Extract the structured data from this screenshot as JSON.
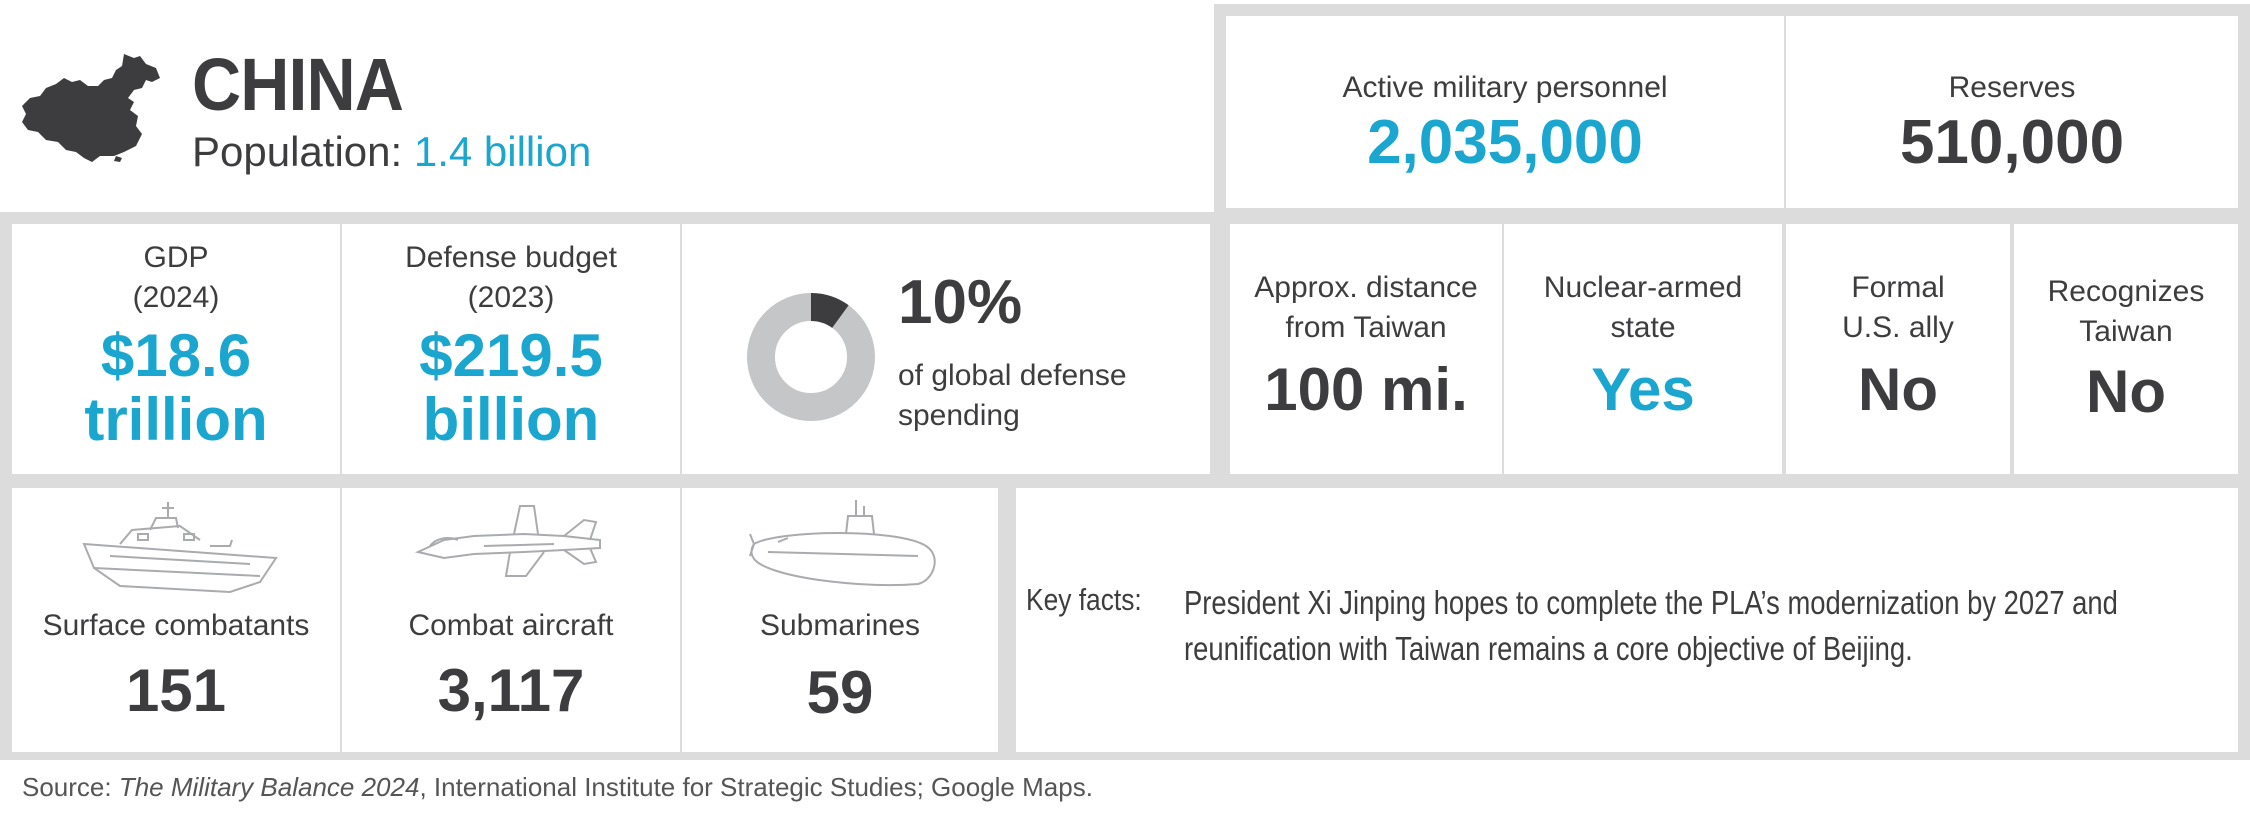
{
  "header": {
    "country": "CHINA",
    "population_label": "Population:",
    "population_value": "1.4 billion",
    "map_icon": "china-map-icon"
  },
  "personnel": {
    "active_label": "Active military personnel",
    "active_value": "2,035,000",
    "reserves_label": "Reserves",
    "reserves_value": "510,000"
  },
  "economy": {
    "gdp_label_1": "GDP",
    "gdp_label_2": "(2024)",
    "gdp_value_1": "$18.6",
    "gdp_value_2": "trillion",
    "defense_label_1": "Defense budget",
    "defense_label_2": "(2023)",
    "defense_value_1": "$219.5",
    "defense_value_2": "billion",
    "global_share_value": "10%",
    "global_share_fraction": 0.1,
    "global_share_text_1": "of global defense",
    "global_share_text_2": "spending"
  },
  "status": {
    "distance_label_1": "Approx. distance",
    "distance_label_2": "from Taiwan",
    "distance_value": "100 mi.",
    "nuclear_label_1": "Nuclear-armed",
    "nuclear_label_2": "state",
    "nuclear_value": "Yes",
    "ally_label_1": "Formal",
    "ally_label_2": "U.S. ally",
    "ally_value": "No",
    "recognizes_label_1": "Recognizes",
    "recognizes_label_2": "Taiwan",
    "recognizes_value": "No"
  },
  "forces": {
    "surface_label": "Surface combatants",
    "surface_value": "151",
    "surface_icon": "warship-icon",
    "aircraft_label": "Combat aircraft",
    "aircraft_value": "3,117",
    "aircraft_icon": "fighter-jet-icon",
    "submarines_label": "Submarines",
    "submarines_value": "59",
    "submarines_icon": "submarine-icon"
  },
  "key_facts": {
    "label": "Key facts:",
    "text": "President Xi Jinping hopes to complete the PLA’s modernization by 2027 and reunification with Taiwan remains a core objective of Beijing."
  },
  "source": {
    "prefix": "Source: ",
    "publication": "The Military Balance 2024",
    "suffix": ", International Institute for Strategic Studies; Google Maps."
  },
  "colors": {
    "accent": "#1aa6cf",
    "dark": "#3d3d3f",
    "frame": "#dcdcdc",
    "donut_rest": "#c4c6c8",
    "donut_share": "#3d3d3f"
  }
}
